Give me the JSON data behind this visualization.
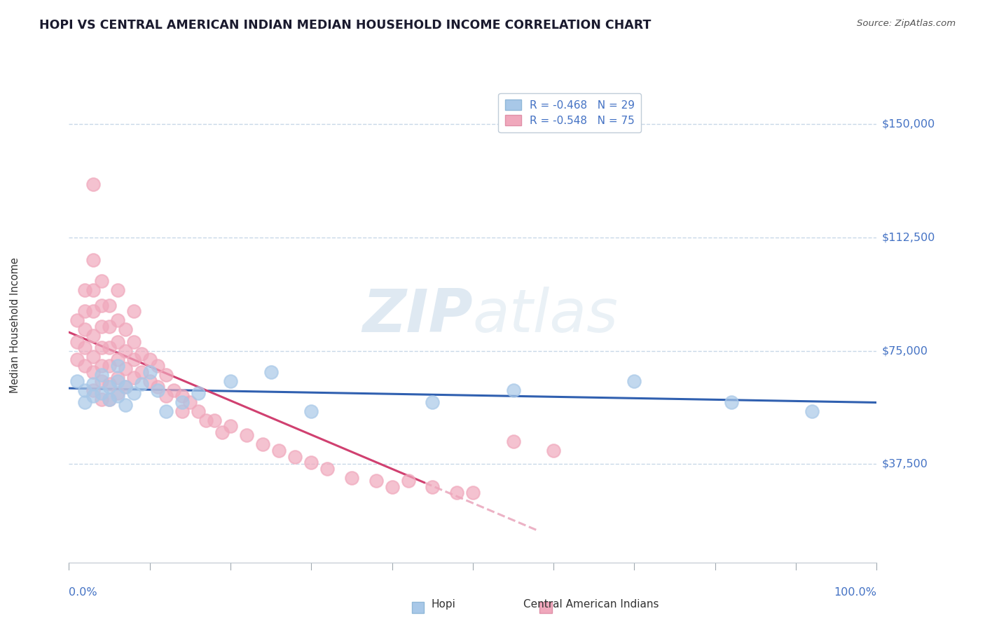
{
  "title": "HOPI VS CENTRAL AMERICAN INDIAN MEDIAN HOUSEHOLD INCOME CORRELATION CHART",
  "source": "Source: ZipAtlas.com",
  "ylabel": "Median Household Income",
  "yticks": [
    0,
    37500,
    75000,
    112500,
    150000
  ],
  "ytick_labels": [
    "",
    "$37,500",
    "$75,000",
    "$112,500",
    "$150,000"
  ],
  "xlim": [
    0,
    1.0
  ],
  "ylim": [
    5000,
    162000
  ],
  "watermark_zip": "ZIP",
  "watermark_atlas": "atlas",
  "watermark_color_zip": "#c5d8e8",
  "watermark_color_atlas": "#c5d8e8",
  "legend_label_hopi": "R = -0.468   N = 29",
  "legend_label_central": "R = -0.548   N = 75",
  "hopi_x": [
    0.01,
    0.02,
    0.02,
    0.03,
    0.03,
    0.04,
    0.04,
    0.05,
    0.05,
    0.06,
    0.06,
    0.06,
    0.07,
    0.07,
    0.08,
    0.09,
    0.1,
    0.11,
    0.12,
    0.14,
    0.16,
    0.2,
    0.25,
    0.3,
    0.45,
    0.55,
    0.7,
    0.82,
    0.92
  ],
  "hopi_y": [
    65000,
    58000,
    62000,
    60000,
    64000,
    61000,
    67000,
    63000,
    59000,
    70000,
    65000,
    60000,
    63000,
    57000,
    61000,
    64000,
    68000,
    62000,
    55000,
    58000,
    61000,
    65000,
    68000,
    55000,
    58000,
    62000,
    65000,
    58000,
    55000
  ],
  "central_x": [
    0.01,
    0.01,
    0.01,
    0.02,
    0.02,
    0.02,
    0.02,
    0.02,
    0.03,
    0.03,
    0.03,
    0.03,
    0.03,
    0.03,
    0.03,
    0.04,
    0.04,
    0.04,
    0.04,
    0.04,
    0.04,
    0.04,
    0.05,
    0.05,
    0.05,
    0.05,
    0.05,
    0.05,
    0.06,
    0.06,
    0.06,
    0.06,
    0.06,
    0.07,
    0.07,
    0.07,
    0.07,
    0.08,
    0.08,
    0.08,
    0.09,
    0.09,
    0.1,
    0.1,
    0.11,
    0.11,
    0.12,
    0.12,
    0.13,
    0.14,
    0.14,
    0.15,
    0.16,
    0.17,
    0.18,
    0.19,
    0.2,
    0.22,
    0.24,
    0.26,
    0.28,
    0.3,
    0.32,
    0.35,
    0.38,
    0.4,
    0.42,
    0.45,
    0.48,
    0.5,
    0.03,
    0.06,
    0.08,
    0.55,
    0.6
  ],
  "central_y": [
    85000,
    78000,
    72000,
    95000,
    88000,
    82000,
    76000,
    70000,
    105000,
    95000,
    88000,
    80000,
    73000,
    68000,
    62000,
    98000,
    90000,
    83000,
    76000,
    70000,
    65000,
    59000,
    90000,
    83000,
    76000,
    70000,
    64000,
    59000,
    85000,
    78000,
    72000,
    66000,
    61000,
    82000,
    75000,
    69000,
    63000,
    78000,
    72000,
    66000,
    74000,
    68000,
    72000,
    65000,
    70000,
    63000,
    67000,
    60000,
    62000,
    60000,
    55000,
    58000,
    55000,
    52000,
    52000,
    48000,
    50000,
    47000,
    44000,
    42000,
    40000,
    38000,
    36000,
    33000,
    32000,
    30000,
    32000,
    30000,
    28000,
    28000,
    130000,
    95000,
    88000,
    45000,
    42000
  ],
  "hopi_color": "#a8c8e8",
  "central_color": "#f0a8bc",
  "hopi_line_color": "#3060b0",
  "central_line_color": "#d04070",
  "background_color": "#ffffff",
  "grid_color": "#c8d8e8",
  "title_color": "#1a1a2e",
  "source_color": "#555555",
  "ylabel_color": "#333333",
  "axis_label_color": "#4472c4",
  "legend_text_color": "#4472c4"
}
